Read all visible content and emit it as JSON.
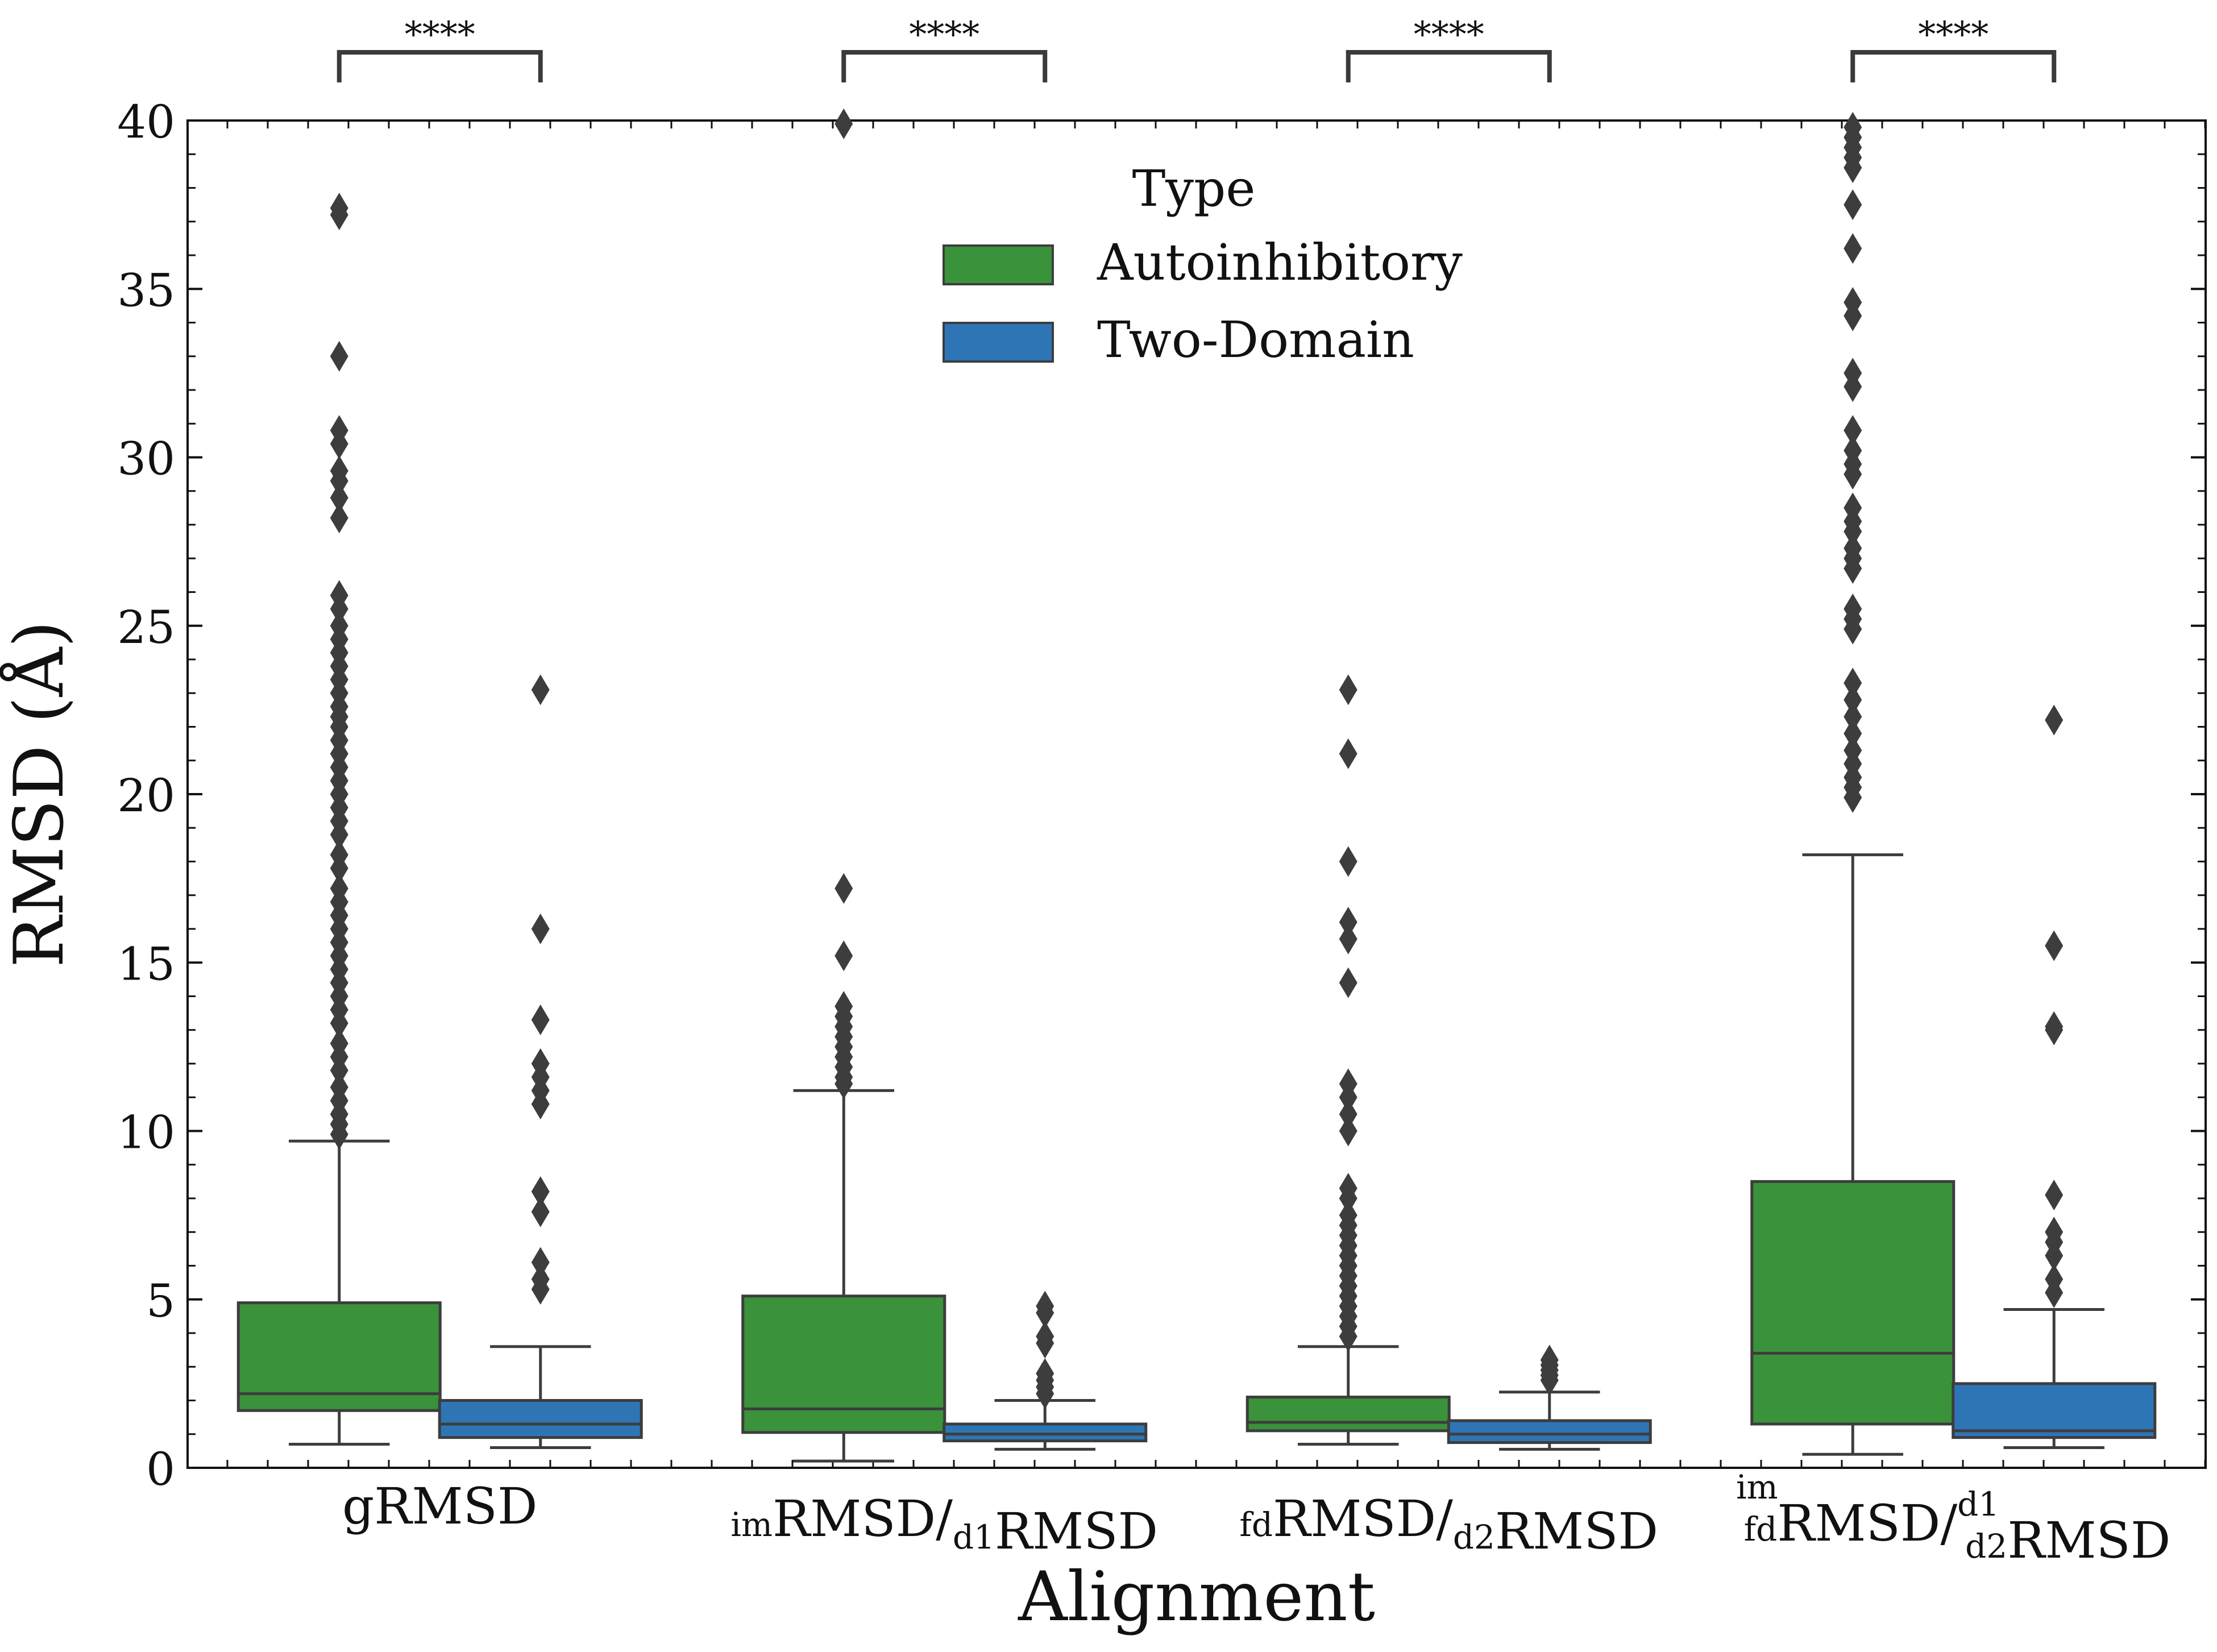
{
  "chart_data": {
    "type": "box",
    "xlabel": "Alignment",
    "ylabel": "RMSD (Å)",
    "ylim": [
      0,
      40
    ],
    "y_ticks": [
      0,
      5,
      10,
      15,
      20,
      25,
      30,
      35,
      40
    ],
    "grid": false,
    "legend": {
      "title": "Type",
      "placement": "top-center",
      "entries": [
        {
          "name": "Autoinhibitory",
          "color": "#3a923a"
        },
        {
          "name": "Two-Domain",
          "color": "#2e75b6"
        }
      ]
    },
    "categories": [
      {
        "base": "gRMSD",
        "sub": "",
        "sup": "",
        "base2": "",
        "sub2": "",
        "sup2": ""
      },
      {
        "base": "RMSD/",
        "sub": "im",
        "sup": "",
        "base2": "RMSD",
        "sub2": "d1",
        "sup2": ""
      },
      {
        "base": "RMSD/",
        "sub": "fd",
        "sup": "",
        "base2": "RMSD",
        "sub2": "d2",
        "sup2": ""
      },
      {
        "base": "RMSD/",
        "sub": "fd",
        "sup": "im",
        "base2": "RMSD",
        "sub2": "d2",
        "sup2": "d1"
      }
    ],
    "significance": [
      "****",
      "****",
      "****",
      "****"
    ],
    "series": [
      {
        "name": "Autoinhibitory",
        "color": "#3a923a",
        "boxes": [
          {
            "whislo": 0.7,
            "q1": 1.7,
            "med": 2.2,
            "q3": 4.9,
            "whishi": 9.7,
            "fliers": [
              37.2,
              37.4,
              33.0,
              30.8,
              30.4,
              29.6,
              29.3,
              28.8,
              28.2,
              25.9,
              25.5,
              25.0,
              24.6,
              24.2,
              23.8,
              23.4,
              23.0,
              22.6,
              22.3,
              22.0,
              21.6,
              21.2,
              20.8,
              20.4,
              20.0,
              19.6,
              19.2,
              18.8,
              18.2,
              17.8,
              17.2,
              16.8,
              16.4,
              16.0,
              15.6,
              15.2,
              14.8,
              14.4,
              14.0,
              13.6,
              13.2,
              12.6,
              12.2,
              11.8,
              11.3,
              10.9,
              10.5,
              10.2,
              9.9
            ]
          },
          {
            "whislo": 0.2,
            "q1": 1.05,
            "med": 1.75,
            "q3": 5.1,
            "whishi": 11.2,
            "fliers": [
              39.9,
              17.2,
              15.2,
              13.7,
              13.4,
              13.1,
              12.8,
              12.5,
              12.2,
              11.9,
              11.6,
              11.4
            ]
          },
          {
            "whislo": 0.7,
            "q1": 1.1,
            "med": 1.35,
            "q3": 2.1,
            "whishi": 3.6,
            "fliers": [
              23.1,
              21.2,
              18.0,
              16.2,
              15.7,
              14.4,
              11.4,
              11.0,
              10.5,
              10.0,
              8.3,
              8.0,
              7.5,
              7.2,
              6.9,
              6.6,
              6.3,
              6.0,
              5.7,
              5.4,
              5.1,
              4.8,
              4.5,
              4.2,
              3.9
            ]
          },
          {
            "whislo": 0.4,
            "q1": 1.3,
            "med": 3.4,
            "q3": 8.5,
            "whishi": 18.2,
            "fliers": [
              39.8,
              39.5,
              39.2,
              38.9,
              38.6,
              37.5,
              36.2,
              34.6,
              34.2,
              32.5,
              32.1,
              30.8,
              30.2,
              29.8,
              29.5,
              28.5,
              28.1,
              27.8,
              27.3,
              27.0,
              26.7,
              25.5,
              25.2,
              24.9,
              23.3,
              22.8,
              22.3,
              21.8,
              21.3,
              20.9,
              20.5,
              20.2,
              19.9
            ]
          }
        ]
      },
      {
        "name": "Two-Domain",
        "color": "#2e75b6",
        "boxes": [
          {
            "whislo": 0.6,
            "q1": 0.9,
            "med": 1.3,
            "q3": 2.0,
            "whishi": 3.6,
            "fliers": [
              23.1,
              16.0,
              13.3,
              12.0,
              11.6,
              11.2,
              10.8,
              8.2,
              7.6,
              6.1,
              5.6,
              5.3
            ]
          },
          {
            "whislo": 0.55,
            "q1": 0.8,
            "med": 1.0,
            "q3": 1.3,
            "whishi": 2.0,
            "fliers": [
              4.8,
              4.6,
              3.9,
              3.7,
              2.8,
              2.6,
              2.4,
              2.2
            ]
          },
          {
            "whislo": 0.55,
            "q1": 0.75,
            "med": 1.0,
            "q3": 1.4,
            "whishi": 2.25,
            "fliers": [
              3.2,
              3.05,
              2.9,
              2.75,
              2.6
            ]
          },
          {
            "whislo": 0.6,
            "q1": 0.9,
            "med": 1.1,
            "q3": 2.5,
            "whishi": 4.7,
            "fliers": [
              22.2,
              15.5,
              13.1,
              13.0,
              8.1,
              7.0,
              6.7,
              6.3,
              5.6,
              5.2
            ]
          }
        ]
      }
    ]
  }
}
